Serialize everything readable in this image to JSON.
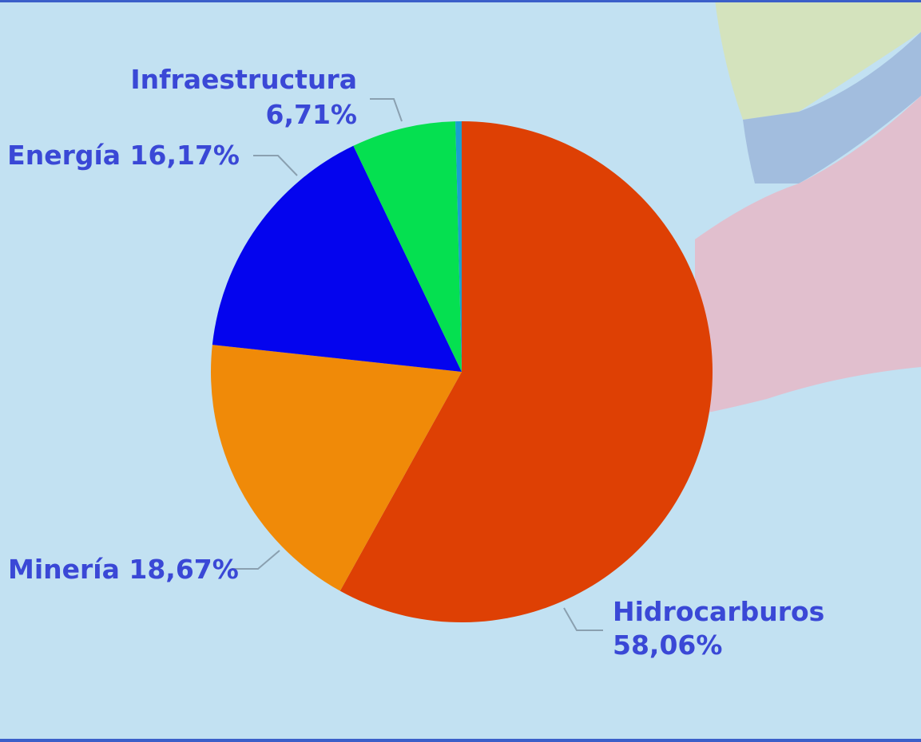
{
  "colors": {
    "background": "#c2e1f2",
    "border": "#3b5fc9",
    "label_text": "#3a48d6"
  },
  "chart_data": {
    "type": "pie",
    "title": "",
    "legend": "none",
    "start_angle_deg": 0,
    "direction": "clockwise",
    "slices": [
      {
        "name": "Hidrocarburos",
        "percent_label": "58,06%",
        "value": 58.06,
        "color": "#de4004"
      },
      {
        "name": "Minería",
        "percent_label": "18,67%",
        "value": 18.67,
        "color": "#f08a08"
      },
      {
        "name": "Energía",
        "percent_label": "16,17%",
        "value": 16.17,
        "color": "#0404ee"
      },
      {
        "name": "Infraestructura",
        "percent_label": "6,71%",
        "value": 6.71,
        "color": "#05e050"
      },
      {
        "name": "",
        "percent_label": "",
        "value": 0.4,
        "color": "#1a9fd0"
      }
    ],
    "labels": {
      "infraestructura_name": "Infraestructura",
      "infraestructura_pct": "6,71%",
      "energia": "Energía 16,17%",
      "mineria": "Minería 18,67%",
      "hidrocarburos_name": "Hidrocarburos",
      "hidrocarburos_pct": "58,06%"
    }
  }
}
